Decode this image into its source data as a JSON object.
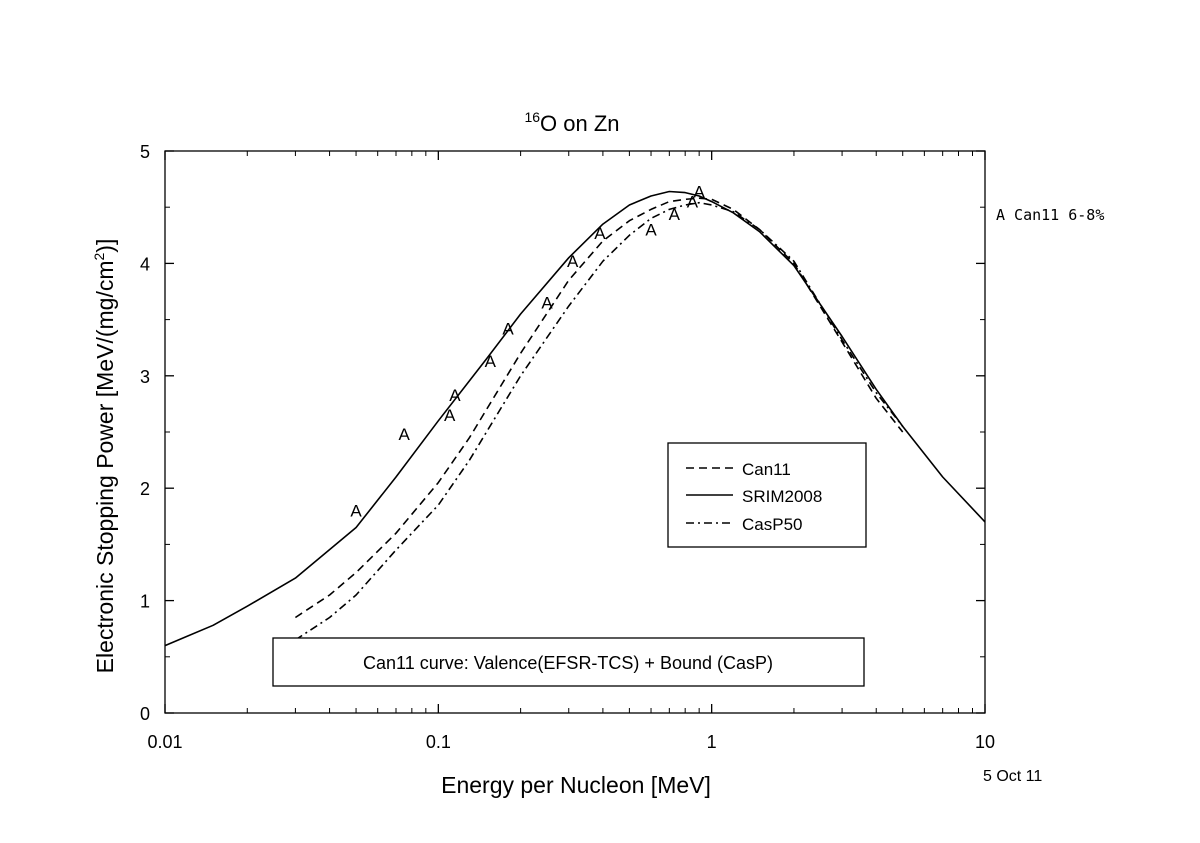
{
  "chart_data": {
    "type": "line",
    "title_superscript": "16",
    "title_main": "O on Zn",
    "xlabel": "Energy per Nucleon [MeV]",
    "ylabel_main": "Electronic Stopping Power [MeV/(mg/cm",
    "ylabel_sup": "2",
    "ylabel_end": ")]",
    "x_scale": "log",
    "xlim": [
      0.01,
      10
    ],
    "ylim": [
      0,
      5
    ],
    "x_ticks": [
      0.01,
      0.1,
      1,
      10
    ],
    "x_tick_labels": [
      "0.01",
      "0.1",
      "1",
      "10"
    ],
    "y_ticks": [
      0,
      1,
      2,
      3,
      4,
      5
    ],
    "y_tick_labels": [
      "0",
      "1",
      "2",
      "3",
      "4",
      "5"
    ],
    "grid": false,
    "legend_position": "center-right",
    "series": [
      {
        "name": "Can11",
        "style": "dashed",
        "x": [
          0.03,
          0.04,
          0.05,
          0.07,
          0.1,
          0.13,
          0.15,
          0.2,
          0.3,
          0.4,
          0.5,
          0.6,
          0.7,
          0.8,
          0.9,
          1.0,
          1.2,
          1.5,
          2,
          3,
          4,
          5
        ],
        "y": [
          0.85,
          1.05,
          1.25,
          1.6,
          2.05,
          2.45,
          2.7,
          3.2,
          3.85,
          4.2,
          4.38,
          4.48,
          4.55,
          4.57,
          4.58,
          4.57,
          4.48,
          4.3,
          4.0,
          3.3,
          2.8,
          2.5
        ]
      },
      {
        "name": "SRIM2008",
        "style": "solid",
        "x": [
          0.01,
          0.015,
          0.02,
          0.03,
          0.05,
          0.07,
          0.1,
          0.15,
          0.2,
          0.3,
          0.4,
          0.5,
          0.6,
          0.7,
          0.8,
          0.9,
          1.0,
          1.2,
          1.5,
          2,
          3,
          4,
          5,
          7,
          10
        ],
        "y": [
          0.6,
          0.78,
          0.95,
          1.2,
          1.65,
          2.1,
          2.6,
          3.15,
          3.55,
          4.05,
          4.35,
          4.52,
          4.6,
          4.64,
          4.63,
          4.6,
          4.55,
          4.45,
          4.28,
          3.98,
          3.35,
          2.88,
          2.55,
          2.1,
          1.7
        ]
      },
      {
        "name": "CasP50",
        "style": "dashdot",
        "x": [
          0.03,
          0.04,
          0.05,
          0.07,
          0.1,
          0.13,
          0.15,
          0.2,
          0.3,
          0.4,
          0.5,
          0.6,
          0.7,
          0.8,
          0.9,
          1.0,
          1.2,
          1.5,
          2,
          3,
          4,
          5
        ],
        "y": [
          0.65,
          0.85,
          1.05,
          1.45,
          1.85,
          2.25,
          2.5,
          3.0,
          3.62,
          4.02,
          4.25,
          4.4,
          4.48,
          4.52,
          4.54,
          4.52,
          4.46,
          4.3,
          4.02,
          3.32,
          2.85,
          2.55
        ]
      }
    ],
    "markers": {
      "symbol": "A",
      "x": [
        0.05,
        0.075,
        0.11,
        0.115,
        0.155,
        0.18,
        0.25,
        0.31,
        0.39,
        0.6,
        0.73,
        0.85,
        0.9
      ],
      "y": [
        1.8,
        2.48,
        2.65,
        2.83,
        3.13,
        3.42,
        3.65,
        4.02,
        4.27,
        4.3,
        4.44,
        4.55,
        4.64
      ]
    },
    "side_note": "A Can11 6-8%",
    "annotation": "Can11 curve: Valence(EFSR-TCS) + Bound (CasP)",
    "date_label": "5 Oct 11"
  }
}
